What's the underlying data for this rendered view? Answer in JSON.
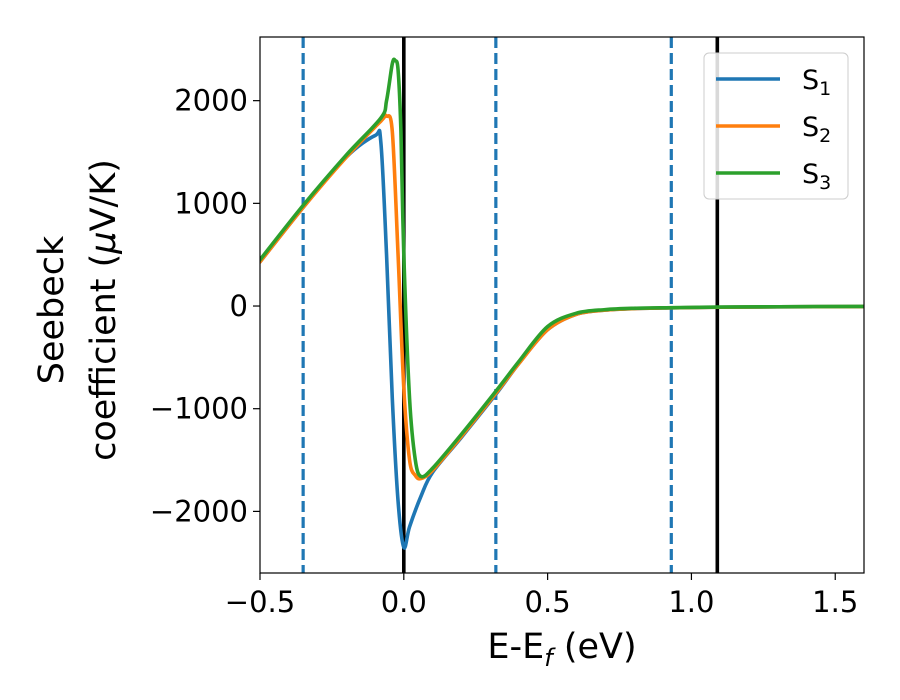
{
  "chart_data": {
    "type": "line",
    "xlabel": "E-E",
    "xlabel_sub": "f",
    "xlabel_unit": " (eV)",
    "ylabel_line1": "Seebeck",
    "ylabel_line2": "coefficient  (",
    "ylabel_mu": "μ",
    "ylabel_line2_end": "V/K)",
    "xlim": [
      -0.5,
      1.6
    ],
    "ylim": [
      -2600,
      2620
    ],
    "x_ticks": [
      {
        "value": -0.5,
        "label": "−0.5"
      },
      {
        "value": 0.0,
        "label": "0.0"
      },
      {
        "value": 0.5,
        "label": "0.5"
      },
      {
        "value": 1.0,
        "label": "1.0"
      },
      {
        "value": 1.5,
        "label": "1.5"
      }
    ],
    "y_ticks": [
      {
        "value": 2000,
        "label": "2000"
      },
      {
        "value": 1000,
        "label": "1000"
      },
      {
        "value": 0,
        "label": "0"
      },
      {
        "value": -1000,
        "label": "−1000"
      },
      {
        "value": -2000,
        "label": "−2000"
      }
    ],
    "grid": false,
    "legend": {
      "placement": "top-right"
    },
    "vertical_lines": [
      {
        "x": -0.35,
        "style": "dashed",
        "color": "#1f77b4"
      },
      {
        "x": 0.0,
        "style": "solid",
        "color": "#000000"
      },
      {
        "x": 0.32,
        "style": "dashed",
        "color": "#1f77b4"
      },
      {
        "x": 0.93,
        "style": "dashed",
        "color": "#1f77b4"
      },
      {
        "x": 1.09,
        "style": "solid",
        "color": "#000000"
      }
    ],
    "series": [
      {
        "name": "S",
        "sub": "1",
        "color": "#1f77b4",
        "x": [
          -0.5,
          -0.35,
          -0.2,
          -0.1,
          -0.08,
          -0.06,
          -0.04,
          -0.02,
          0.0,
          0.02,
          0.06,
          0.1,
          0.2,
          0.32,
          0.4,
          0.5,
          0.6,
          0.7,
          0.8,
          0.93,
          1.09,
          1.3,
          1.6
        ],
        "y": [
          430,
          960,
          1450,
          1660,
          1600,
          500,
          -900,
          -1900,
          -2350,
          -2150,
          -1850,
          -1620,
          -1280,
          -860,
          -560,
          -230,
          -80,
          -40,
          -25,
          -18,
          -12,
          -8,
          -5
        ]
      },
      {
        "name": "S",
        "sub": "2",
        "color": "#ff7f0e",
        "x": [
          -0.5,
          -0.35,
          -0.2,
          -0.08,
          -0.06,
          -0.04,
          -0.02,
          0.0,
          0.02,
          0.04,
          0.06,
          0.1,
          0.2,
          0.32,
          0.4,
          0.5,
          0.6,
          0.7,
          0.8,
          0.93,
          1.09,
          1.3,
          1.6
        ],
        "y": [
          430,
          960,
          1450,
          1800,
          1850,
          1700,
          500,
          -800,
          -1500,
          -1650,
          -1680,
          -1600,
          -1270,
          -850,
          -560,
          -230,
          -80,
          -40,
          -25,
          -18,
          -12,
          -8,
          -5
        ]
      },
      {
        "name": "S",
        "sub": "3",
        "color": "#2ca02c",
        "x": [
          -0.5,
          -0.35,
          -0.2,
          -0.08,
          -0.06,
          -0.04,
          -0.03,
          -0.02,
          -0.01,
          0.0,
          0.02,
          0.04,
          0.06,
          0.1,
          0.2,
          0.32,
          0.4,
          0.5,
          0.6,
          0.7,
          0.8,
          0.93,
          1.09,
          1.3,
          1.6
        ],
        "y": [
          450,
          980,
          1470,
          1830,
          2000,
          2360,
          2390,
          2300,
          1700,
          500,
          -900,
          -1500,
          -1660,
          -1580,
          -1250,
          -830,
          -540,
          -200,
          -70,
          -35,
          -22,
          -16,
          -10,
          -7,
          -4
        ]
      }
    ]
  }
}
